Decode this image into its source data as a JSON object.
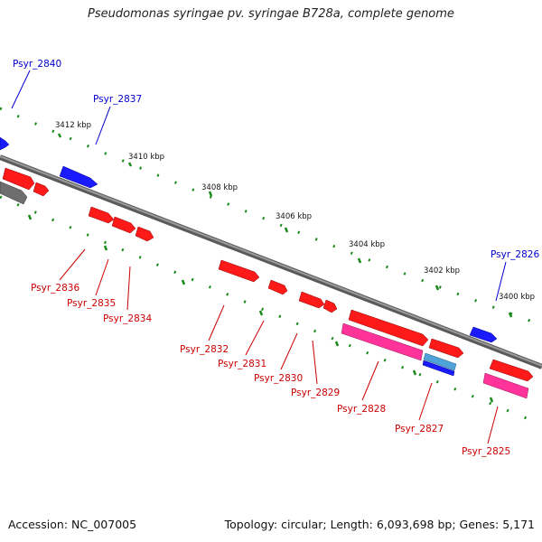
{
  "title": "Pseudomonas syringae pv. syringae B728a, complete genome",
  "footer": {
    "accession": "Accession: NC_007005",
    "topology": "Topology: circular; Length: 6,093,698 bp; Genes: 5,171"
  },
  "colors": {
    "backbone": "#7a7a7a",
    "forward_gene": "#ff1a1a",
    "reverse_gene": "#ff1a1a",
    "highlight_gene": "#1a1aff",
    "pink_feature": "#ff3399",
    "light_blue_feature": "#4fa3d9",
    "grey_feature": "#6e6e6e",
    "tick": "#1a8a1a",
    "label_red": "#cc0000",
    "label_blue": "#0000cc"
  },
  "ticks": [
    "3412 kbp",
    "3410 kbp",
    "3408 kbp",
    "3406 kbp",
    "3404 kbp",
    "3402 kbp",
    "3400 kbp"
  ],
  "gene_labels": [
    {
      "name": "Psyr_2840",
      "color": "blue"
    },
    {
      "name": "Psyr_2837",
      "color": "blue"
    },
    {
      "name": "Psyr_2826",
      "color": "blue"
    },
    {
      "name": "Psyr_2836",
      "color": "red"
    },
    {
      "name": "Psyr_2835",
      "color": "red"
    },
    {
      "name": "Psyr_2834",
      "color": "red"
    },
    {
      "name": "Psyr_2832",
      "color": "red"
    },
    {
      "name": "Psyr_2831",
      "color": "red"
    },
    {
      "name": "Psyr_2830",
      "color": "red"
    },
    {
      "name": "Psyr_2829",
      "color": "red"
    },
    {
      "name": "Psyr_2828",
      "color": "red"
    },
    {
      "name": "Psyr_2827",
      "color": "red"
    },
    {
      "name": "Psyr_2825",
      "color": "red"
    }
  ]
}
